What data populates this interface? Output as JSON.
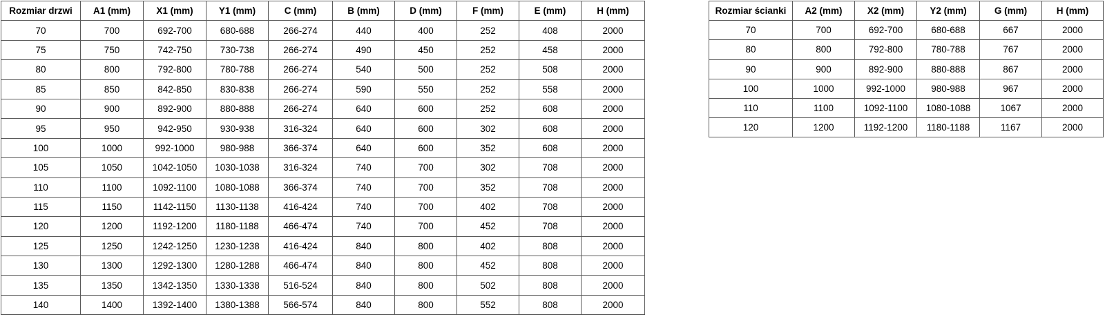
{
  "page": {
    "background_color": "#ffffff",
    "border_color": "#595959",
    "text_color": "#000000"
  },
  "left_table": {
    "title": "Rozmiar drzwi",
    "headers": [
      "Rozmiar drzwi",
      "A1 (mm)",
      "X1 (mm)",
      "Y1 (mm)",
      "C (mm)",
      "B (mm)",
      "D (mm)",
      "F (mm)",
      "E (mm)",
      "H (mm)"
    ],
    "rows": [
      [
        "70",
        "700",
        "692-700",
        "680-688",
        "266-274",
        "440",
        "400",
        "252",
        "408",
        "2000"
      ],
      [
        "75",
        "750",
        "742-750",
        "730-738",
        "266-274",
        "490",
        "450",
        "252",
        "458",
        "2000"
      ],
      [
        "80",
        "800",
        "792-800",
        "780-788",
        "266-274",
        "540",
        "500",
        "252",
        "508",
        "2000"
      ],
      [
        "85",
        "850",
        "842-850",
        "830-838",
        "266-274",
        "590",
        "550",
        "252",
        "558",
        "2000"
      ],
      [
        "90",
        "900",
        "892-900",
        "880-888",
        "266-274",
        "640",
        "600",
        "252",
        "608",
        "2000"
      ],
      [
        "95",
        "950",
        "942-950",
        "930-938",
        "316-324",
        "640",
        "600",
        "302",
        "608",
        "2000"
      ],
      [
        "100",
        "1000",
        "992-1000",
        "980-988",
        "366-374",
        "640",
        "600",
        "352",
        "608",
        "2000"
      ],
      [
        "105",
        "1050",
        "1042-1050",
        "1030-1038",
        "316-324",
        "740",
        "700",
        "302",
        "708",
        "2000"
      ],
      [
        "110",
        "1100",
        "1092-1100",
        "1080-1088",
        "366-374",
        "740",
        "700",
        "352",
        "708",
        "2000"
      ],
      [
        "115",
        "1150",
        "1142-1150",
        "1130-1138",
        "416-424",
        "740",
        "700",
        "402",
        "708",
        "2000"
      ],
      [
        "120",
        "1200",
        "1192-1200",
        "1180-1188",
        "466-474",
        "740",
        "700",
        "452",
        "708",
        "2000"
      ],
      [
        "125",
        "1250",
        "1242-1250",
        "1230-1238",
        "416-424",
        "840",
        "800",
        "402",
        "808",
        "2000"
      ],
      [
        "130",
        "1300",
        "1292-1300",
        "1280-1288",
        "466-474",
        "840",
        "800",
        "452",
        "808",
        "2000"
      ],
      [
        "135",
        "1350",
        "1342-1350",
        "1330-1338",
        "516-524",
        "840",
        "800",
        "502",
        "808",
        "2000"
      ],
      [
        "140",
        "1400",
        "1392-1400",
        "1380-1388",
        "566-574",
        "840",
        "800",
        "552",
        "808",
        "2000"
      ]
    ]
  },
  "right_table": {
    "title": "Rozmiar ścianki",
    "headers": [
      "Rozmiar ścianki",
      "A2 (mm)",
      "X2 (mm)",
      "Y2 (mm)",
      "G (mm)",
      "H (mm)"
    ],
    "rows": [
      [
        "70",
        "700",
        "692-700",
        "680-688",
        "667",
        "2000"
      ],
      [
        "80",
        "800",
        "792-800",
        "780-788",
        "767",
        "2000"
      ],
      [
        "90",
        "900",
        "892-900",
        "880-888",
        "867",
        "2000"
      ],
      [
        "100",
        "1000",
        "992-1000",
        "980-988",
        "967",
        "2000"
      ],
      [
        "110",
        "1100",
        "1092-1100",
        "1080-1088",
        "1067",
        "2000"
      ],
      [
        "120",
        "1200",
        "1192-1200",
        "1180-1188",
        "1167",
        "2000"
      ]
    ]
  }
}
